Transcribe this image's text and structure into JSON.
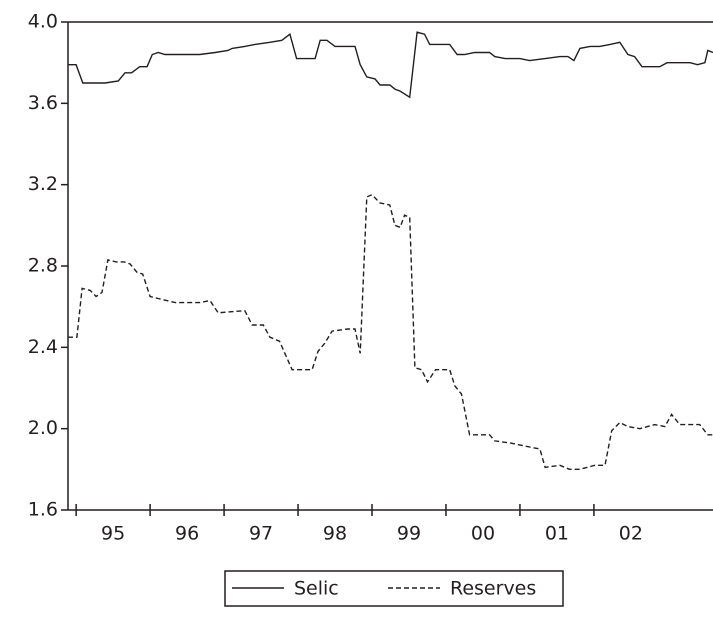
{
  "chart_data": {
    "type": "line",
    "xlim": [
      1994.89,
      2003.61
    ],
    "xticks": [
      {
        "value": 1995.5,
        "label": "95"
      },
      {
        "value": 1996.5,
        "label": "96"
      },
      {
        "value": 1997.5,
        "label": "97"
      },
      {
        "value": 1998.5,
        "label": "98"
      },
      {
        "value": 1999.5,
        "label": "99"
      },
      {
        "value": 2000.5,
        "label": "00"
      },
      {
        "value": 2001.5,
        "label": "01"
      },
      {
        "value": 2002.5,
        "label": "02"
      }
    ],
    "ylim": [
      1.6,
      4.0
    ],
    "yticks": [
      1.6,
      {
        "value": 2.0,
        "label": "2.0"
      },
      2.4,
      2.8,
      3.2,
      3.6,
      {
        "value": 4.0,
        "label": "4.0"
      }
    ],
    "legend": "bottom",
    "series": [
      {
        "name": "Selic",
        "color": "#231f20",
        "dash": "solid",
        "x": [
          1994.89,
          1995.0,
          1995.09,
          1995.19,
          1995.39,
          1995.57,
          1995.66,
          1995.75,
          1995.86,
          1995.96,
          1996.03,
          1996.11,
          1996.2,
          1996.4,
          1996.67,
          1996.88,
          1997.05,
          1997.11,
          1997.28,
          1997.42,
          1997.62,
          1997.78,
          1997.89,
          1997.98,
          1998.09,
          1998.23,
          1998.3,
          1998.39,
          1998.5,
          1998.67,
          1998.77,
          1998.84,
          1998.93,
          1999.04,
          1999.11,
          1999.24,
          1999.31,
          1999.38,
          1999.51,
          1999.61,
          1999.71,
          1999.78,
          1999.92,
          2000.05,
          2000.15,
          2000.25,
          2000.39,
          2000.59,
          2000.66,
          2000.8,
          2001.0,
          2001.13,
          2001.34,
          2001.54,
          2001.65,
          2001.73,
          2001.81,
          2001.95,
          2002.08,
          2002.22,
          2002.35,
          2002.46,
          2002.55,
          2002.65,
          2002.78,
          2002.89,
          2002.99,
          2003.3,
          2003.4,
          2003.5,
          2003.54,
          2003.61
        ],
        "values": [
          3.79,
          3.79,
          3.7,
          3.7,
          3.7,
          3.71,
          3.75,
          3.75,
          3.78,
          3.78,
          3.84,
          3.85,
          3.84,
          3.84,
          3.84,
          3.85,
          3.86,
          3.87,
          3.88,
          3.89,
          3.9,
          3.91,
          3.94,
          3.82,
          3.82,
          3.82,
          3.91,
          3.91,
          3.88,
          3.88,
          3.88,
          3.79,
          3.73,
          3.72,
          3.69,
          3.69,
          3.67,
          3.66,
          3.63,
          3.95,
          3.94,
          3.89,
          3.89,
          3.89,
          3.84,
          3.84,
          3.85,
          3.85,
          3.83,
          3.82,
          3.82,
          3.81,
          3.82,
          3.83,
          3.83,
          3.81,
          3.87,
          3.88,
          3.88,
          3.89,
          3.9,
          3.84,
          3.83,
          3.78,
          3.78,
          3.78,
          3.8,
          3.8,
          3.79,
          3.8,
          3.86,
          3.85
        ]
      },
      {
        "name": "Reserves",
        "color": "#231f20",
        "dash": "dashed",
        "x": [
          1994.89,
          1995.01,
          1995.08,
          1995.19,
          1995.27,
          1995.35,
          1995.43,
          1995.54,
          1995.65,
          1995.73,
          1995.82,
          1995.9,
          1996.0,
          1996.11,
          1996.34,
          1996.67,
          1996.81,
          1996.92,
          1997.28,
          1997.38,
          1997.53,
          1997.62,
          1997.75,
          1997.92,
          1998.19,
          1998.27,
          1998.36,
          1998.46,
          1998.67,
          1998.77,
          1998.84,
          1998.93,
          1999.0,
          1999.11,
          1999.24,
          1999.31,
          1999.38,
          1999.44,
          1999.51,
          1999.58,
          1999.67,
          1999.75,
          1999.86,
          2000.05,
          2000.12,
          2000.21,
          2000.32,
          2000.59,
          2000.66,
          2000.86,
          2001.13,
          2001.27,
          2001.34,
          2001.54,
          2001.67,
          2001.81,
          2002.01,
          2002.15,
          2002.24,
          2002.35,
          2002.46,
          2002.62,
          2002.82,
          2002.96,
          2003.05,
          2003.16,
          2003.43,
          2003.54,
          2003.61
        ],
        "values": [
          2.45,
          2.45,
          2.69,
          2.68,
          2.65,
          2.67,
          2.83,
          2.82,
          2.82,
          2.81,
          2.77,
          2.76,
          2.65,
          2.64,
          2.62,
          2.62,
          2.63,
          2.57,
          2.58,
          2.51,
          2.51,
          2.45,
          2.43,
          2.29,
          2.29,
          2.38,
          2.42,
          2.48,
          2.49,
          2.49,
          2.37,
          3.14,
          3.15,
          3.11,
          3.1,
          3.0,
          2.99,
          3.05,
          3.04,
          2.3,
          2.29,
          2.23,
          2.29,
          2.29,
          2.21,
          2.17,
          1.97,
          1.97,
          1.94,
          1.93,
          1.91,
          1.9,
          1.81,
          1.82,
          1.8,
          1.8,
          1.82,
          1.82,
          1.99,
          2.03,
          2.01,
          2.0,
          2.02,
          2.01,
          2.07,
          2.02,
          2.02,
          1.97,
          1.97
        ]
      }
    ]
  }
}
